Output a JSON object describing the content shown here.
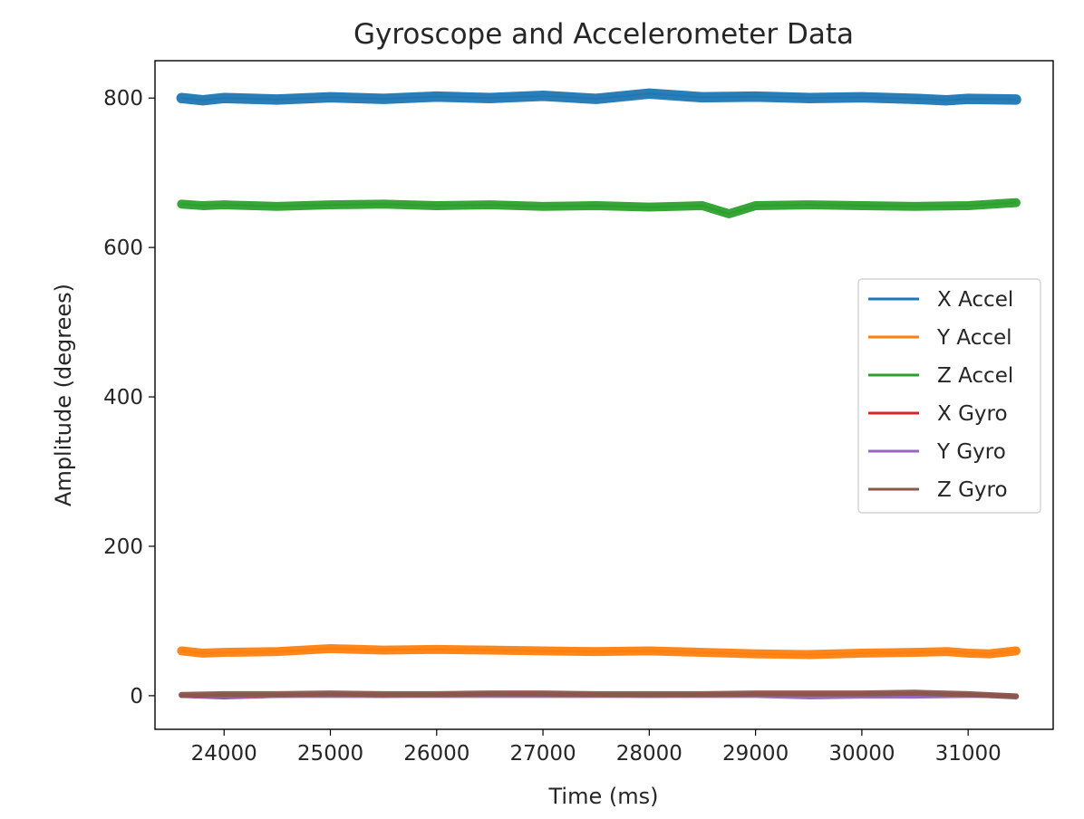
{
  "chart_data": {
    "type": "line",
    "title": "Gyroscope and Accelerometer Data",
    "xlabel": "Time (ms)",
    "ylabel": "Amplitude (degrees)",
    "xlim": [
      23350,
      31800
    ],
    "ylim": [
      -45,
      850
    ],
    "xticks": [
      "24000",
      "25000",
      "26000",
      "27000",
      "28000",
      "29000",
      "30000",
      "31000"
    ],
    "yticks": [
      "0",
      "200",
      "400",
      "600",
      "800"
    ],
    "xtick_values": [
      24000,
      25000,
      26000,
      27000,
      28000,
      29000,
      30000,
      31000
    ],
    "ytick_values": [
      0,
      200,
      400,
      600,
      800
    ],
    "grid": false,
    "legend_position": "center-right",
    "series": [
      {
        "name": "X Accel",
        "color": "#1f77b4",
        "x": [
          23600,
          23800,
          24000,
          24500,
          25000,
          25500,
          26000,
          26500,
          27000,
          27500,
          28000,
          28500,
          29000,
          29500,
          30000,
          30500,
          30800,
          31000,
          31450
        ],
        "y": [
          800,
          797,
          800,
          798,
          801,
          799,
          802,
          800,
          803,
          799,
          806,
          801,
          802,
          800,
          801,
          799,
          797,
          799,
          798
        ],
        "band": 14
      },
      {
        "name": "Y Accel",
        "color": "#ff7f0e",
        "x": [
          23600,
          23800,
          24000,
          24500,
          25000,
          25500,
          26000,
          26500,
          27000,
          27500,
          28000,
          28500,
          29000,
          29500,
          30000,
          30500,
          30800,
          31000,
          31200,
          31450
        ],
        "y": [
          60,
          57,
          58,
          59,
          63,
          61,
          62,
          61,
          60,
          59,
          60,
          58,
          56,
          55,
          57,
          58,
          59,
          57,
          56,
          60
        ],
        "band": 12
      },
      {
        "name": "Z Accel",
        "color": "#2ca02c",
        "x": [
          23600,
          23800,
          24000,
          24500,
          25000,
          25500,
          26000,
          26500,
          27000,
          27500,
          28000,
          28500,
          28750,
          29000,
          29500,
          30000,
          30500,
          31000,
          31450
        ],
        "y": [
          658,
          656,
          657,
          655,
          657,
          658,
          656,
          657,
          655,
          656,
          654,
          656,
          645,
          656,
          657,
          656,
          655,
          656,
          660
        ],
        "band": 12
      },
      {
        "name": "X Gyro",
        "color": "#d62728",
        "x": [
          23600,
          24000,
          24500,
          25000,
          25500,
          26000,
          26500,
          27000,
          27500,
          28000,
          28500,
          29000,
          29500,
          30000,
          30500,
          31000,
          31450
        ],
        "y": [
          0,
          -2,
          0,
          1,
          0,
          1,
          2,
          1,
          1,
          0,
          1,
          1,
          0,
          1,
          1,
          1,
          0
        ],
        "band": 6
      },
      {
        "name": "Y Gyro",
        "color": "#9467bd",
        "x": [
          23600,
          24000,
          24500,
          25000,
          25500,
          26000,
          26500,
          27000,
          27500,
          28000,
          28500,
          29000,
          29500,
          30000,
          30500,
          31000,
          31450
        ],
        "y": [
          0,
          -1,
          0,
          0,
          0,
          0,
          0,
          0,
          0,
          0,
          0,
          0,
          -2,
          -1,
          -1,
          0,
          0
        ],
        "band": 6
      },
      {
        "name": "Z Gyro",
        "color": "#8c564b",
        "x": [
          23600,
          24000,
          24500,
          25000,
          25500,
          26000,
          26500,
          27000,
          27500,
          28000,
          28500,
          29000,
          29500,
          30000,
          30500,
          31000,
          31450
        ],
        "y": [
          1,
          2,
          2,
          3,
          2,
          2,
          3,
          3,
          2,
          2,
          2,
          3,
          3,
          3,
          4,
          2,
          -1
        ],
        "band": 8
      }
    ]
  }
}
